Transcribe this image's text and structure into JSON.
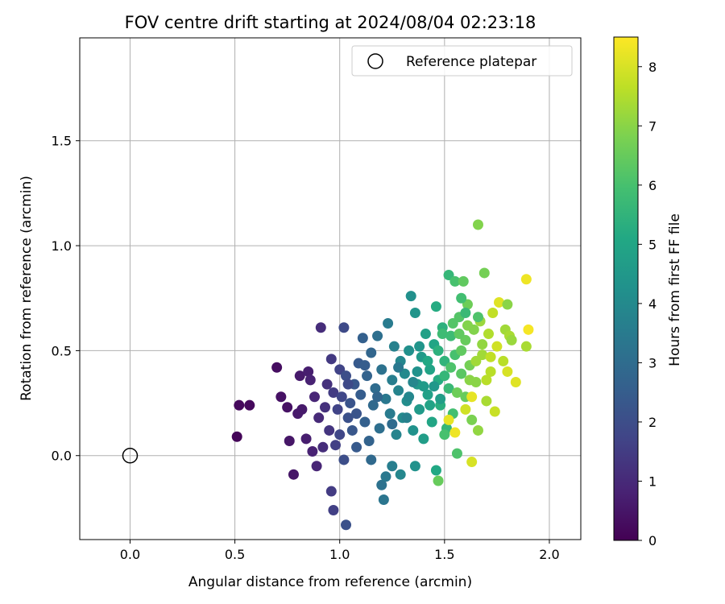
{
  "chart_data": {
    "type": "scatter",
    "title": "FOV centre drift starting at 2024/08/04 02:23:18",
    "xlabel": "Angular distance from reference (arcmin)",
    "ylabel": "Rotation from reference (arcmin)",
    "xlim": [
      -0.24,
      2.15
    ],
    "ylim": [
      -0.4,
      1.99
    ],
    "x_ticks": [
      0.0,
      0.5,
      1.0,
      1.5,
      2.0
    ],
    "x_tick_labels": [
      "0.0",
      "0.5",
      "1.0",
      "1.5",
      "2.0"
    ],
    "y_ticks": [
      0.0,
      0.5,
      1.0,
      1.5
    ],
    "y_tick_labels": [
      "0.0",
      "0.5",
      "1.0",
      "1.5"
    ],
    "grid": true,
    "colormap": "viridis",
    "colorbar": {
      "label": "Hours from first FF file",
      "range": [
        0,
        8.5
      ],
      "ticks": [
        0,
        1,
        2,
        3,
        4,
        5,
        6,
        7,
        8
      ],
      "tick_labels": [
        "0",
        "1",
        "2",
        "3",
        "4",
        "5",
        "6",
        "7",
        "8"
      ]
    },
    "legend": {
      "position": "top-right",
      "entries": [
        {
          "label": "Reference platepar",
          "marker": "open-circle",
          "x": 0.0,
          "y": 0.0
        }
      ]
    },
    "series": [
      {
        "color_by": "hours",
        "points": [
          [
            0.51,
            0.09,
            0.1
          ],
          [
            0.52,
            0.24,
            0.2
          ],
          [
            0.57,
            0.24,
            0.2
          ],
          [
            0.7,
            0.42,
            0.3
          ],
          [
            0.72,
            0.28,
            0.4
          ],
          [
            0.75,
            0.23,
            0.4
          ],
          [
            0.76,
            0.07,
            0.5
          ],
          [
            0.78,
            -0.09,
            0.5
          ],
          [
            0.8,
            0.2,
            0.6
          ],
          [
            0.81,
            0.38,
            0.6
          ],
          [
            0.82,
            0.22,
            0.6
          ],
          [
            0.84,
            0.08,
            0.7
          ],
          [
            0.85,
            0.4,
            0.7
          ],
          [
            0.86,
            0.36,
            0.8
          ],
          [
            0.87,
            0.02,
            0.8
          ],
          [
            0.88,
            0.28,
            0.9
          ],
          [
            0.89,
            -0.05,
            0.9
          ],
          [
            0.9,
            0.18,
            1.0
          ],
          [
            0.91,
            0.61,
            1.1
          ],
          [
            0.92,
            0.04,
            1.1
          ],
          [
            0.93,
            0.23,
            1.2
          ],
          [
            0.94,
            0.34,
            1.2
          ],
          [
            0.95,
            0.12,
            1.3
          ],
          [
            0.96,
            0.46,
            1.4
          ],
          [
            0.96,
            -0.17,
            1.5
          ],
          [
            0.97,
            0.3,
            1.5
          ],
          [
            0.97,
            -0.26,
            1.6
          ],
          [
            0.98,
            0.05,
            1.6
          ],
          [
            0.99,
            0.22,
            1.7
          ],
          [
            1.0,
            0.41,
            1.7
          ],
          [
            1.0,
            0.1,
            1.8
          ],
          [
            1.01,
            0.28,
            1.8
          ],
          [
            1.02,
            0.61,
            1.9
          ],
          [
            1.02,
            -0.02,
            2.0
          ],
          [
            1.03,
            0.38,
            2.0
          ],
          [
            1.03,
            -0.33,
            2.1
          ],
          [
            1.04,
            0.18,
            2.1
          ],
          [
            1.05,
            0.25,
            2.2
          ],
          [
            1.06,
            0.12,
            2.3
          ],
          [
            1.07,
            0.34,
            2.3
          ],
          [
            1.08,
            0.04,
            2.4
          ],
          [
            1.09,
            0.44,
            2.4
          ],
          [
            1.1,
            0.29,
            2.5
          ],
          [
            1.11,
            0.56,
            2.6
          ],
          [
            1.12,
            0.16,
            2.6
          ],
          [
            1.13,
            0.38,
            2.7
          ],
          [
            1.14,
            0.07,
            2.7
          ],
          [
            1.15,
            0.49,
            2.8
          ],
          [
            1.15,
            -0.02,
            2.9
          ],
          [
            1.16,
            0.24,
            2.9
          ],
          [
            1.17,
            0.32,
            3.0
          ],
          [
            1.18,
            0.57,
            3.1
          ],
          [
            1.19,
            0.13,
            3.1
          ],
          [
            1.2,
            -0.14,
            3.2
          ],
          [
            1.2,
            0.41,
            3.2
          ],
          [
            1.21,
            -0.21,
            3.3
          ],
          [
            1.22,
            0.27,
            3.4
          ],
          [
            1.22,
            -0.1,
            3.4
          ],
          [
            1.23,
            0.63,
            3.5
          ],
          [
            1.24,
            0.2,
            3.5
          ],
          [
            1.25,
            -0.05,
            3.6
          ],
          [
            1.25,
            0.36,
            3.6
          ],
          [
            1.26,
            0.52,
            3.7
          ],
          [
            1.27,
            0.1,
            3.8
          ],
          [
            1.28,
            0.31,
            3.8
          ],
          [
            1.29,
            0.45,
            3.9
          ],
          [
            1.29,
            -0.09,
            3.9
          ],
          [
            1.3,
            0.18,
            4.0
          ],
          [
            1.31,
            0.39,
            4.0
          ],
          [
            1.32,
            0.26,
            4.1
          ],
          [
            1.33,
            0.5,
            4.2
          ],
          [
            1.34,
            0.76,
            4.2
          ],
          [
            1.35,
            0.12,
            4.3
          ],
          [
            1.36,
            -0.05,
            4.3
          ],
          [
            1.36,
            0.68,
            4.4
          ],
          [
            1.37,
            0.34,
            4.5
          ],
          [
            1.38,
            0.22,
            4.6
          ],
          [
            1.39,
            0.47,
            4.6
          ],
          [
            1.4,
            0.08,
            4.7
          ],
          [
            1.41,
            0.58,
            4.8
          ],
          [
            1.42,
            0.29,
            4.8
          ],
          [
            1.43,
            0.41,
            4.9
          ],
          [
            1.44,
            0.16,
            5.0
          ],
          [
            1.45,
            0.53,
            5.0
          ],
          [
            1.46,
            -0.07,
            5.1
          ],
          [
            1.46,
            0.71,
            5.2
          ],
          [
            1.47,
            0.36,
            5.2
          ],
          [
            1.48,
            0.24,
            5.3
          ],
          [
            1.49,
            0.61,
            5.4
          ],
          [
            1.5,
            0.45,
            5.5
          ],
          [
            1.51,
            0.13,
            5.6
          ],
          [
            1.52,
            0.86,
            5.6
          ],
          [
            1.52,
            0.32,
            5.7
          ],
          [
            1.53,
            0.57,
            5.8
          ],
          [
            1.54,
            0.2,
            5.9
          ],
          [
            1.55,
            0.48,
            6.0
          ],
          [
            1.55,
            0.83,
            6.0
          ],
          [
            1.56,
            0.01,
            6.1
          ],
          [
            1.57,
            0.66,
            6.2
          ],
          [
            1.58,
            0.39,
            6.3
          ],
          [
            1.59,
            0.83,
            6.4
          ],
          [
            1.6,
            0.28,
            6.5
          ],
          [
            1.6,
            0.55,
            6.5
          ],
          [
            1.61,
            0.72,
            6.6
          ],
          [
            1.62,
            0.43,
            6.7
          ],
          [
            1.63,
            0.17,
            6.8
          ],
          [
            1.64,
            0.6,
            6.9
          ],
          [
            1.65,
            0.35,
            7.0
          ],
          [
            1.66,
            1.1,
            6.9
          ],
          [
            1.66,
            0.12,
            7.1
          ],
          [
            1.67,
            0.64,
            7.2
          ],
          [
            1.68,
            0.48,
            7.3
          ],
          [
            1.69,
            0.87,
            6.7
          ],
          [
            1.7,
            0.26,
            7.4
          ],
          [
            1.71,
            0.58,
            7.5
          ],
          [
            1.72,
            0.4,
            7.6
          ],
          [
            1.73,
            0.68,
            7.7
          ],
          [
            1.74,
            0.21,
            7.8
          ],
          [
            1.75,
            0.52,
            7.9
          ],
          [
            1.76,
            0.73,
            8.1
          ],
          [
            1.78,
            0.45,
            7.6
          ],
          [
            1.79,
            0.6,
            7.3
          ],
          [
            1.8,
            0.72,
            7.0
          ],
          [
            1.8,
            0.4,
            8.0
          ],
          [
            1.81,
            0.57,
            7.4
          ],
          [
            1.82,
            0.55,
            7.2
          ],
          [
            1.84,
            0.35,
            8.1
          ],
          [
            1.89,
            0.52,
            7.4
          ],
          [
            1.89,
            0.84,
            8.3
          ],
          [
            1.9,
            0.6,
            8.4
          ],
          [
            1.45,
            0.33,
            4.5
          ],
          [
            1.48,
            0.27,
            4.7
          ],
          [
            1.42,
            0.45,
            5.1
          ],
          [
            1.5,
            0.38,
            5.6
          ],
          [
            1.47,
            0.5,
            5.4
          ],
          [
            1.53,
            0.42,
            6.1
          ],
          [
            1.58,
            0.5,
            6.4
          ],
          [
            1.56,
            0.3,
            6.6
          ],
          [
            1.62,
            0.36,
            7.0
          ],
          [
            1.61,
            0.62,
            6.9
          ],
          [
            1.35,
            0.35,
            3.9
          ],
          [
            1.32,
            0.18,
            3.7
          ],
          [
            1.28,
            0.42,
            3.4
          ],
          [
            1.38,
            0.52,
            4.4
          ],
          [
            1.33,
            0.28,
            3.9
          ],
          [
            1.25,
            0.15,
            3.0
          ],
          [
            1.18,
            0.28,
            2.8
          ],
          [
            1.12,
            0.43,
            2.5
          ],
          [
            1.08,
            0.2,
            2.2
          ],
          [
            1.04,
            0.34,
            1.9
          ],
          [
            1.65,
            0.45,
            7.3
          ],
          [
            1.7,
            0.36,
            7.6
          ],
          [
            1.68,
            0.53,
            7.1
          ],
          [
            1.72,
            0.47,
            7.7
          ],
          [
            1.57,
            0.58,
            6.4
          ],
          [
            1.54,
            0.63,
            6.2
          ],
          [
            1.49,
            0.58,
            5.8
          ],
          [
            1.43,
            0.24,
            4.9
          ],
          [
            1.4,
            0.33,
            4.6
          ],
          [
            1.37,
            0.4,
            4.3
          ],
          [
            1.6,
            0.22,
            7.9
          ],
          [
            1.63,
            0.28,
            8.2
          ],
          [
            1.55,
            0.11,
            8.3
          ],
          [
            1.52,
            0.17,
            8.2
          ],
          [
            1.63,
            -0.03,
            8.0
          ],
          [
            1.66,
            0.66,
            6.1
          ],
          [
            1.58,
            0.75,
            5.9
          ],
          [
            1.6,
            0.68,
            5.7
          ],
          [
            1.47,
            -0.12,
            6.5
          ],
          [
            1.5,
            0.1,
            6.0
          ]
        ]
      }
    ]
  }
}
